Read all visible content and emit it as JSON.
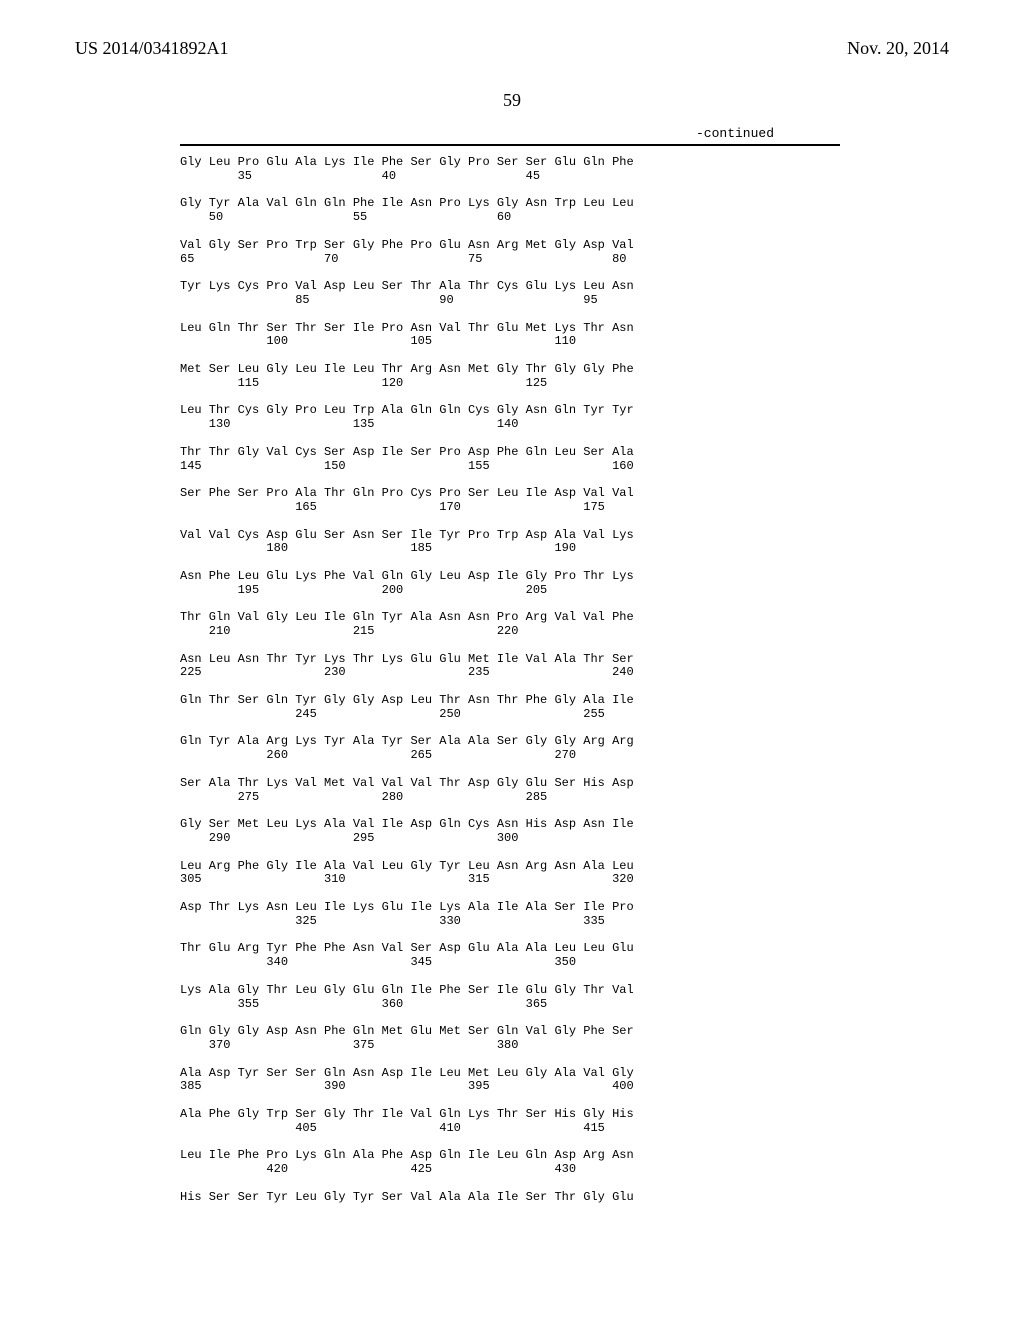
{
  "header": {
    "left": "US 2014/0341892A1",
    "right": "Nov. 20, 2014"
  },
  "page_number": "59",
  "continued_label": "-continued",
  "sequence": {
    "font_family": "Courier New",
    "font_size_pt": 9,
    "text_color": "#000000",
    "blocks": [
      {
        "aa": "Gly Leu Pro Glu Ala Lys Ile Phe Ser Gly Pro Ser Ser Glu Gln Phe",
        "num": "        35                  40                  45"
      },
      {
        "aa": "Gly Tyr Ala Val Gln Gln Phe Ile Asn Pro Lys Gly Asn Trp Leu Leu",
        "num": "    50                  55                  60"
      },
      {
        "aa": "Val Gly Ser Pro Trp Ser Gly Phe Pro Glu Asn Arg Met Gly Asp Val",
        "num": "65                  70                  75                  80"
      },
      {
        "aa": "Tyr Lys Cys Pro Val Asp Leu Ser Thr Ala Thr Cys Glu Lys Leu Asn",
        "num": "                85                  90                  95"
      },
      {
        "aa": "Leu Gln Thr Ser Thr Ser Ile Pro Asn Val Thr Glu Met Lys Thr Asn",
        "num": "            100                 105                 110"
      },
      {
        "aa": "Met Ser Leu Gly Leu Ile Leu Thr Arg Asn Met Gly Thr Gly Gly Phe",
        "num": "        115                 120                 125"
      },
      {
        "aa": "Leu Thr Cys Gly Pro Leu Trp Ala Gln Gln Cys Gly Asn Gln Tyr Tyr",
        "num": "    130                 135                 140"
      },
      {
        "aa": "Thr Thr Gly Val Cys Ser Asp Ile Ser Pro Asp Phe Gln Leu Ser Ala",
        "num": "145                 150                 155                 160"
      },
      {
        "aa": "Ser Phe Ser Pro Ala Thr Gln Pro Cys Pro Ser Leu Ile Asp Val Val",
        "num": "                165                 170                 175"
      },
      {
        "aa": "Val Val Cys Asp Glu Ser Asn Ser Ile Tyr Pro Trp Asp Ala Val Lys",
        "num": "            180                 185                 190"
      },
      {
        "aa": "Asn Phe Leu Glu Lys Phe Val Gln Gly Leu Asp Ile Gly Pro Thr Lys",
        "num": "        195                 200                 205"
      },
      {
        "aa": "Thr Gln Val Gly Leu Ile Gln Tyr Ala Asn Asn Pro Arg Val Val Phe",
        "num": "    210                 215                 220"
      },
      {
        "aa": "Asn Leu Asn Thr Tyr Lys Thr Lys Glu Glu Met Ile Val Ala Thr Ser",
        "num": "225                 230                 235                 240"
      },
      {
        "aa": "Gln Thr Ser Gln Tyr Gly Gly Asp Leu Thr Asn Thr Phe Gly Ala Ile",
        "num": "                245                 250                 255"
      },
      {
        "aa": "Gln Tyr Ala Arg Lys Tyr Ala Tyr Ser Ala Ala Ser Gly Gly Arg Arg",
        "num": "            260                 265                 270"
      },
      {
        "aa": "Ser Ala Thr Lys Val Met Val Val Val Thr Asp Gly Glu Ser His Asp",
        "num": "        275                 280                 285"
      },
      {
        "aa": "Gly Ser Met Leu Lys Ala Val Ile Asp Gln Cys Asn His Asp Asn Ile",
        "num": "    290                 295                 300"
      },
      {
        "aa": "Leu Arg Phe Gly Ile Ala Val Leu Gly Tyr Leu Asn Arg Asn Ala Leu",
        "num": "305                 310                 315                 320"
      },
      {
        "aa": "Asp Thr Lys Asn Leu Ile Lys Glu Ile Lys Ala Ile Ala Ser Ile Pro",
        "num": "                325                 330                 335"
      },
      {
        "aa": "Thr Glu Arg Tyr Phe Phe Asn Val Ser Asp Glu Ala Ala Leu Leu Glu",
        "num": "            340                 345                 350"
      },
      {
        "aa": "Lys Ala Gly Thr Leu Gly Glu Gln Ile Phe Ser Ile Glu Gly Thr Val",
        "num": "        355                 360                 365"
      },
      {
        "aa": "Gln Gly Gly Asp Asn Phe Gln Met Glu Met Ser Gln Val Gly Phe Ser",
        "num": "    370                 375                 380"
      },
      {
        "aa": "Ala Asp Tyr Ser Ser Gln Asn Asp Ile Leu Met Leu Gly Ala Val Gly",
        "num": "385                 390                 395                 400"
      },
      {
        "aa": "Ala Phe Gly Trp Ser Gly Thr Ile Val Gln Lys Thr Ser His Gly His",
        "num": "                405                 410                 415"
      },
      {
        "aa": "Leu Ile Phe Pro Lys Gln Ala Phe Asp Gln Ile Leu Gln Asp Arg Asn",
        "num": "            420                 425                 430"
      },
      {
        "aa": "His Ser Ser Tyr Leu Gly Tyr Ser Val Ala Ala Ile Ser Thr Gly Glu",
        "num": ""
      }
    ]
  },
  "style": {
    "page_bg": "#ffffff",
    "text_color": "#000000",
    "rule_color": "#000000",
    "header_font_pt": 14,
    "mono_font_pt": 9
  }
}
